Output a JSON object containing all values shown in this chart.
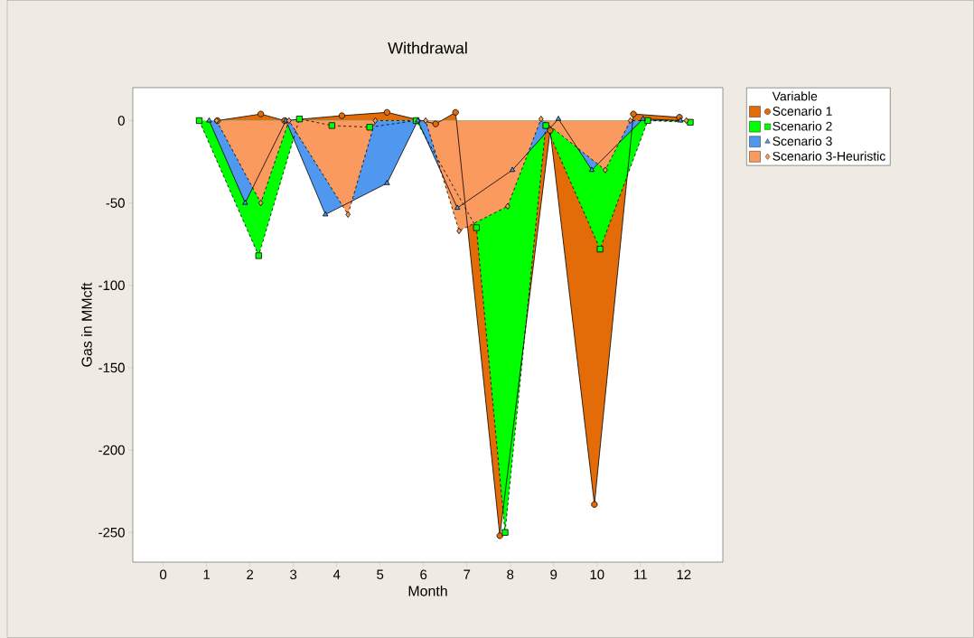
{
  "chart_data": {
    "type": "area",
    "title": "Withdrawal",
    "xlabel": "Month",
    "ylabel": "Gas in MMcft",
    "legend_title": "Variable",
    "legend": "top right",
    "xlim": [
      -0.7,
      12.9
    ],
    "xticks": [
      0,
      1,
      2,
      3,
      4,
      5,
      6,
      7,
      8,
      9,
      10,
      11,
      12
    ],
    "ylim": [
      -268,
      20
    ],
    "yticks": [
      -250,
      -200,
      -150,
      -100,
      -50,
      0
    ],
    "grid": false,
    "series": [
      {
        "name": "Scenario 1",
        "color": "#e36c09",
        "marker": "circle",
        "line_style": "solid",
        "x": [
          1.25,
          2.25,
          2.8,
          4.12,
          5.16,
          6.28,
          6.74,
          7.76,
          8.92,
          9.94,
          10.84,
          11.9
        ],
        "values": [
          0,
          4,
          0,
          3,
          5,
          -2,
          5,
          -252,
          -6,
          -233,
          4,
          2
        ]
      },
      {
        "name": "Scenario 2",
        "color": "#00ff00",
        "marker": "square",
        "line_style": "dashed",
        "x": [
          0.83,
          2.2,
          3.14,
          3.89,
          4.76,
          5.83,
          7.22,
          7.88,
          8.82,
          10.07,
          11.17,
          12.15
        ],
        "values": [
          0,
          -82,
          1,
          -3,
          -4,
          0,
          -65,
          -250,
          -3,
          -78,
          0,
          -1
        ]
      },
      {
        "name": "Scenario 3",
        "color": "#4f97ef",
        "marker": "triangle",
        "line_style": "solid",
        "x": [
          1.06,
          1.89,
          2.83,
          3.74,
          5.16,
          5.87,
          6.78,
          8.05,
          9.11,
          9.88,
          11.06,
          11.92
        ],
        "values": [
          0,
          -50,
          0,
          -57,
          -38,
          0,
          -53,
          -30,
          1,
          -30,
          1,
          0
        ]
      },
      {
        "name": "Scenario 3-Heuristic",
        "color": "#fb9a5e",
        "marker": "diamond",
        "line_style": "dashed",
        "x": [
          1.23,
          2.25,
          2.9,
          4.26,
          4.89,
          6.05,
          6.82,
          7.94,
          8.71,
          10.19,
          10.77,
          12.06
        ],
        "values": [
          0,
          -50,
          0,
          -57,
          0,
          0,
          -67,
          -52,
          1,
          -30,
          0,
          0
        ]
      }
    ]
  }
}
